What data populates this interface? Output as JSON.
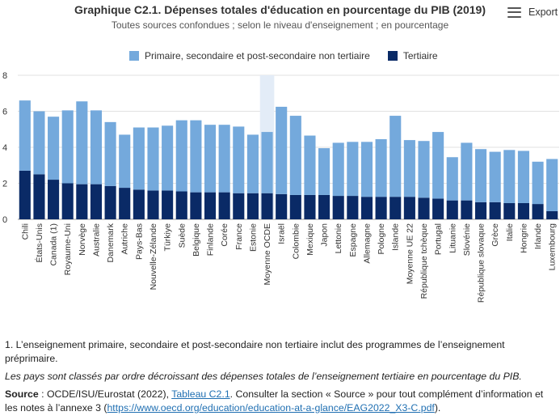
{
  "header": {
    "title": "Graphique C2.1. Dépenses totales d'éducation en pourcentage du PIB (2019)",
    "subtitle": "Toutes sources confondues ; selon le niveau d'enseignement ; en pourcentage",
    "export_label": "Export"
  },
  "colors": {
    "primary_series": "#74a9dc",
    "tertiary_series": "#0a2a66",
    "highlight_band": "#e3ecf7",
    "gridline": "#e2e2e2",
    "link": "#1f6fb2"
  },
  "icons": {
    "export": "hamburger-menu-icon"
  },
  "chart_data": {
    "type": "bar",
    "stacked": true,
    "title": "Graphique C2.1. Dépenses totales d'éducation en pourcentage du PIB (2019)",
    "subtitle": "Toutes sources confondues ; selon le niveau d'enseignement ; en pourcentage",
    "xlabel": "",
    "ylabel": "",
    "ylim": [
      0,
      8
    ],
    "yticks": [
      0,
      2,
      4,
      6,
      8
    ],
    "grid": true,
    "legend_position": "top",
    "highlight_category": "Moyenne OCDE",
    "categories": [
      "Chili",
      "États-Unis",
      "Canada (1)",
      "Royaume-Uni",
      "Norvège",
      "Australie",
      "Danemark",
      "Autriche",
      "Pays-Bas",
      "Nouvelle-Zélande",
      "Türkiye",
      "Suède",
      "Belgique",
      "Finlande",
      "Corée",
      "France",
      "Estonie",
      "Moyenne OCDE",
      "Israël",
      "Colombie",
      "Mexique",
      "Japon",
      "Lettonie",
      "Espagne",
      "Allemagne",
      "Pologne",
      "Islande",
      "Moyenne UE 22",
      "République tchèque",
      "Portugal",
      "Lituanie",
      "Slovénie",
      "République slovaque",
      "Grèce",
      "Italie",
      "Hongrie",
      "Irlande",
      "Luxembourg"
    ],
    "series": [
      {
        "name": "Tertiaire",
        "values": [
          2.7,
          2.5,
          2.2,
          2.0,
          1.95,
          1.95,
          1.85,
          1.75,
          1.65,
          1.6,
          1.6,
          1.55,
          1.5,
          1.5,
          1.5,
          1.45,
          1.45,
          1.45,
          1.4,
          1.35,
          1.35,
          1.35,
          1.3,
          1.3,
          1.25,
          1.25,
          1.25,
          1.25,
          1.2,
          1.15,
          1.05,
          1.05,
          0.95,
          0.95,
          0.9,
          0.9,
          0.85,
          0.45
        ]
      },
      {
        "name": "Primaire, secondaire et post-secondaire non tertiaire",
        "values": [
          3.9,
          3.5,
          3.5,
          4.05,
          4.6,
          4.1,
          3.55,
          2.95,
          3.45,
          3.5,
          3.6,
          3.95,
          4.0,
          3.75,
          3.75,
          3.7,
          3.25,
          3.4,
          4.85,
          4.4,
          3.3,
          2.6,
          2.95,
          3.0,
          3.05,
          3.2,
          4.5,
          3.15,
          3.15,
          3.7,
          2.4,
          3.2,
          2.95,
          2.8,
          2.95,
          2.9,
          2.35,
          2.9
        ]
      }
    ]
  },
  "notes": {
    "note1": "1. L’enseignement primaire, secondaire et post-secondaire non tertiaire inclut des programmes de l’enseignement préprimaire.",
    "sort_note": "Les pays sont classés par ordre décroissant des dépenses totales de l’enseignement tertiaire en pourcentage du PIB.",
    "source_label": "Source",
    "source_text_a": " : OCDE/ISU/Eurostat (2022), ",
    "source_link1": "Tableau C2.1",
    "source_text_b": ". Consulter la section « Source » pour tout complément d’information et les notes à l’annexe 3 (",
    "source_link2": "https://www.oecd.org/education/education-at-a-glance/EAG2022_X3-C.pdf",
    "source_text_c": ")."
  }
}
